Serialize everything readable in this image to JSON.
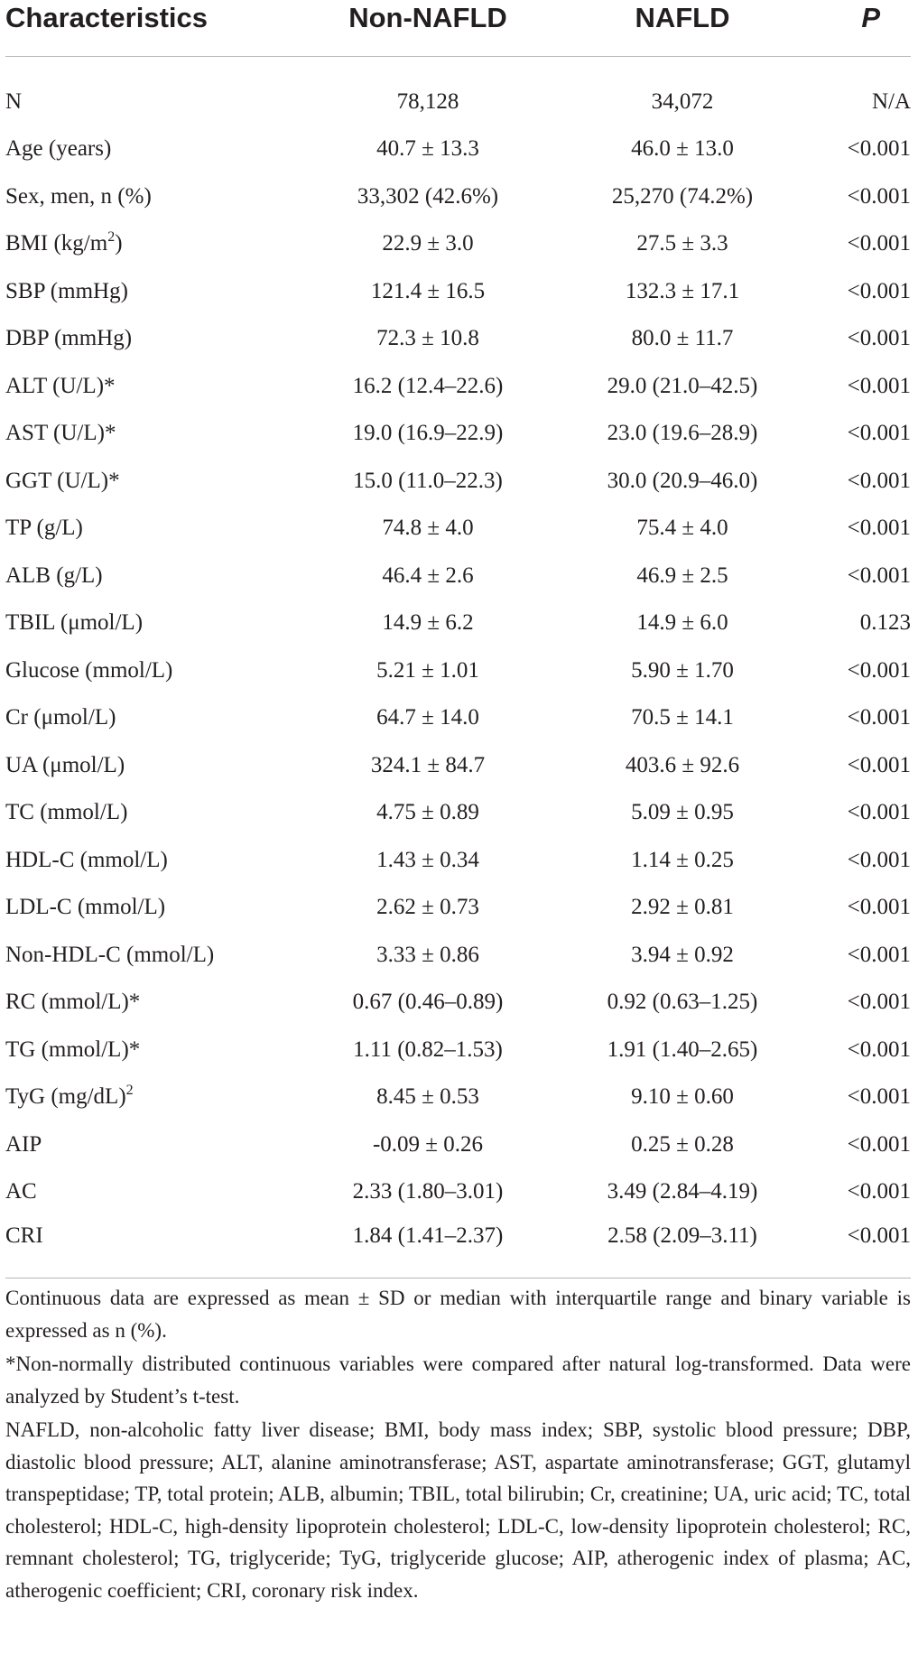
{
  "table": {
    "headers": {
      "characteristics": "Characteristics",
      "non_nafld": "Non-NAFLD",
      "nafld": "NAFLD",
      "p": "P"
    },
    "rows": [
      {
        "label": "N",
        "sup": "",
        "non_nafld": "78,128",
        "nafld": "34,072",
        "p": "N/A"
      },
      {
        "label": "Age (years)",
        "sup": "",
        "non_nafld": "40.7 ± 13.3",
        "nafld": "46.0 ± 13.0",
        "p": "<0.001"
      },
      {
        "label": "Sex, men, n (%)",
        "sup": "",
        "non_nafld": "33,302 (42.6%)",
        "nafld": "25,270 (74.2%)",
        "p": "<0.001"
      },
      {
        "label": "BMI (kg/m",
        "sup": "2",
        "label_after": ")",
        "non_nafld": "22.9 ± 3.0",
        "nafld": "27.5 ± 3.3",
        "p": "<0.001"
      },
      {
        "label": "SBP (mmHg)",
        "sup": "",
        "non_nafld": "121.4 ± 16.5",
        "nafld": "132.3 ± 17.1",
        "p": "<0.001"
      },
      {
        "label": "DBP (mmHg)",
        "sup": "",
        "non_nafld": "72.3 ± 10.8",
        "nafld": "80.0 ± 11.7",
        "p": "<0.001"
      },
      {
        "label": "ALT (U/L)*",
        "sup": "",
        "non_nafld": "16.2 (12.4–22.6)",
        "nafld": "29.0 (21.0–42.5)",
        "p": "<0.001"
      },
      {
        "label": "AST (U/L)*",
        "sup": "",
        "non_nafld": "19.0 (16.9–22.9)",
        "nafld": "23.0 (19.6–28.9)",
        "p": "<0.001"
      },
      {
        "label": "GGT (U/L)*",
        "sup": "",
        "non_nafld": "15.0 (11.0–22.3)",
        "nafld": "30.0 (20.9–46.0)",
        "p": "<0.001"
      },
      {
        "label": "TP (g/L)",
        "sup": "",
        "non_nafld": "74.8 ± 4.0",
        "nafld": "75.4 ± 4.0",
        "p": "<0.001"
      },
      {
        "label": "ALB (g/L)",
        "sup": "",
        "non_nafld": "46.4 ± 2.6",
        "nafld": "46.9 ± 2.5",
        "p": "<0.001"
      },
      {
        "label": "TBIL (μmol/L)",
        "sup": "",
        "non_nafld": "14.9 ± 6.2",
        "nafld": "14.9 ± 6.0",
        "p": "0.123"
      },
      {
        "label": "Glucose (mmol/L)",
        "sup": "",
        "non_nafld": "5.21 ± 1.01",
        "nafld": "5.90 ± 1.70",
        "p": "<0.001"
      },
      {
        "label": "Cr (μmol/L)",
        "sup": "",
        "non_nafld": "64.7 ± 14.0",
        "nafld": "70.5 ± 14.1",
        "p": "<0.001"
      },
      {
        "label": "UA (μmol/L)",
        "sup": "",
        "non_nafld": "324.1 ± 84.7",
        "nafld": "403.6 ± 92.6",
        "p": "<0.001"
      },
      {
        "label": "TC (mmol/L)",
        "sup": "",
        "non_nafld": "4.75 ± 0.89",
        "nafld": "5.09 ± 0.95",
        "p": "<0.001"
      },
      {
        "label": "HDL-C (mmol/L)",
        "sup": "",
        "non_nafld": "1.43 ± 0.34",
        "nafld": "1.14 ± 0.25",
        "p": "<0.001"
      },
      {
        "label": "LDL-C (mmol/L)",
        "sup": "",
        "non_nafld": "2.62 ± 0.73",
        "nafld": "2.92 ± 0.81",
        "p": "<0.001"
      },
      {
        "label": "Non-HDL-C (mmol/L)",
        "sup": "",
        "non_nafld": "3.33 ± 0.86",
        "nafld": "3.94 ± 0.92",
        "p": "<0.001"
      },
      {
        "label": "RC (mmol/L)*",
        "sup": "",
        "non_nafld": "0.67 (0.46–0.89)",
        "nafld": "0.92 (0.63–1.25)",
        "p": "<0.001"
      },
      {
        "label": "TG (mmol/L)*",
        "sup": "",
        "non_nafld": "1.11 (0.82–1.53)",
        "nafld": "1.91 (1.40–2.65)",
        "p": "<0.001"
      },
      {
        "label": "TyG (mg/dL)",
        "sup": "2",
        "non_nafld": "8.45 ± 0.53",
        "nafld": "9.10 ± 0.60",
        "p": "<0.001"
      },
      {
        "label": "AIP",
        "sup": "",
        "non_nafld": "-0.09 ± 0.26",
        "nafld": "0.25 ± 0.28",
        "p": "<0.001"
      },
      {
        "label": "AC",
        "sup": "",
        "non_nafld": "2.33 (1.80–3.01)",
        "nafld": "3.49 (2.84–4.19)",
        "p": "<0.001"
      },
      {
        "label": "CRI",
        "sup": "",
        "non_nafld": "1.84 (1.41–2.37)",
        "nafld": "2.58 (2.09–3.11)",
        "p": "<0.001"
      }
    ]
  },
  "footnotes": [
    "Continuous data are expressed as mean ± SD or median with interquartile range and binary variable is expressed as n (%).",
    "*Non-normally distributed continuous variables were compared after natural log-transformed. Data were analyzed by Student’s t-test.",
    "NAFLD, non-alcoholic fatty liver disease; BMI, body mass index; SBP, systolic blood pressure; DBP, diastolic blood pressure; ALT, alanine aminotransferase; AST, aspartate aminotransferase; GGT, glutamyl transpeptidase; TP, total protein; ALB, albumin; TBIL, total bilirubin; Cr, creatinine; UA, uric acid; TC, total cholesterol; HDL-C, high-density lipoprotein cholesterol; LDL-C, low-density lipoprotein cholesterol; RC, remnant cholesterol; TG, triglyceride; TyG, triglyceride glucose; AIP, atherogenic index of plasma; AC, atherogenic coefficient; CRI, coronary risk index."
  ]
}
